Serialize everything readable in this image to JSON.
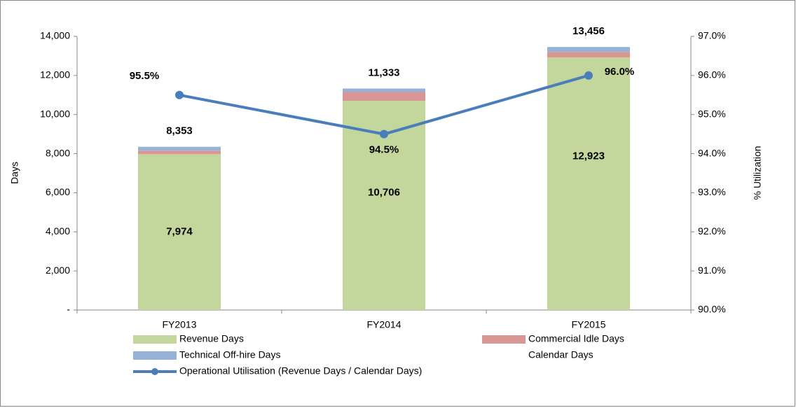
{
  "chart_data": {
    "type": "bar",
    "stacked": true,
    "categories": [
      "FY2013",
      "FY2014",
      "FY2015"
    ],
    "ylabel": "Days",
    "y2label": "% Utilization",
    "ylim": [
      0,
      14000
    ],
    "yticks": [
      {
        "value": 0,
        "label": "-"
      },
      {
        "value": 2000,
        "label": "2,000"
      },
      {
        "value": 4000,
        "label": "4,000"
      },
      {
        "value": 6000,
        "label": "6,000"
      },
      {
        "value": 8000,
        "label": "8,000"
      },
      {
        "value": 10000,
        "label": "10,000"
      },
      {
        "value": 12000,
        "label": "12,000"
      },
      {
        "value": 14000,
        "label": "14,000"
      }
    ],
    "y2lim": [
      90,
      97
    ],
    "y2ticks": [
      {
        "value": 90,
        "label": "90.0%"
      },
      {
        "value": 91,
        "label": "91.0%"
      },
      {
        "value": 92,
        "label": "92.0%"
      },
      {
        "value": 93,
        "label": "93.0%"
      },
      {
        "value": 94,
        "label": "94.0%"
      },
      {
        "value": 95,
        "label": "95.0%"
      },
      {
        "value": 96,
        "label": "96.0%"
      },
      {
        "value": 97,
        "label": "97.0%"
      }
    ],
    "legend": "bottom",
    "series": [
      {
        "name": "Revenue Days",
        "type": "bar",
        "color": "#c3d69b",
        "values": [
          7974,
          10706,
          12923
        ],
        "value_labels": [
          "7,974",
          "10,706",
          "12,923"
        ]
      },
      {
        "name": "Commercial Idle Days",
        "type": "bar",
        "color": "#d99694",
        "values": [
          180,
          447,
          280
        ]
      },
      {
        "name": "Technical Off-hire Days",
        "type": "bar",
        "color": "#95b3d7",
        "values": [
          199,
          180,
          253
        ]
      },
      {
        "name": "Calendar Days",
        "type": "total",
        "values": [
          8353,
          11333,
          13456
        ],
        "value_labels": [
          "8,353",
          "11,333",
          "13,456"
        ]
      },
      {
        "name": "Operational Utilisation (Revenue Days / Calendar Days)",
        "type": "line",
        "axis": "y2",
        "color": "#4a7ebb",
        "values": [
          95.5,
          94.5,
          96.0
        ],
        "value_labels": [
          "95.5%",
          "94.5%",
          "96.0%"
        ]
      }
    ]
  }
}
